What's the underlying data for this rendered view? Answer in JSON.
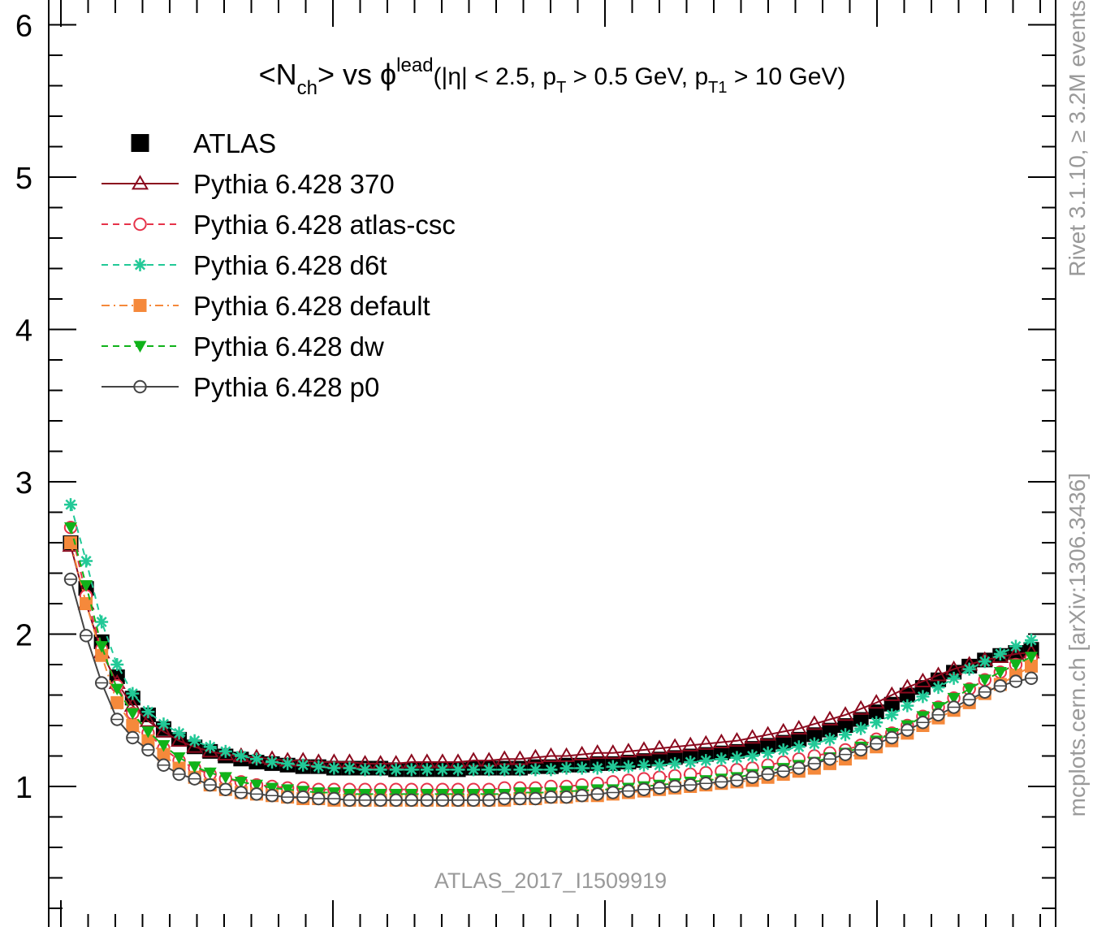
{
  "chart_data": {
    "type": "line",
    "title": {
      "main": "<N",
      "main_sub": "ch",
      "main_mid": "> vs ϕ",
      "main_sup": "lead",
      "cuts_a": "(|η| < 2.5, p",
      "cuts_sub_a": "T",
      "cuts_b": " > 0.5 GeV, p",
      "cuts_sub_b": "T1",
      "cuts_c": " > 10 GeV)"
    },
    "analysis_label": "ATLAS_2017_I1509919",
    "side_label_top": "Rivet 3.1.10, ≥ 3.2M events",
    "side_label_bottom": "mcplots.cern.ch [arXiv:1306.3436]",
    "y_ticks": [
      "1",
      "2",
      "3",
      "4",
      "5",
      "6"
    ],
    "ylim": [
      0.0,
      6.2
    ],
    "xlim": [
      0,
      60
    ],
    "grid": false,
    "legend_position": "top-left",
    "series": [
      {
        "name": "ATLAS",
        "color": "#000000",
        "marker": "filled-square",
        "line": "none",
        "values": [
          2.6,
          2.3,
          1.95,
          1.72,
          1.58,
          1.47,
          1.38,
          1.31,
          1.26,
          1.23,
          1.2,
          1.18,
          1.16,
          1.15,
          1.14,
          1.13,
          1.13,
          1.12,
          1.12,
          1.12,
          1.12,
          1.11,
          1.11,
          1.11,
          1.11,
          1.11,
          1.12,
          1.12,
          1.12,
          1.12,
          1.13,
          1.13,
          1.14,
          1.14,
          1.15,
          1.15,
          1.16,
          1.17,
          1.18,
          1.19,
          1.2,
          1.21,
          1.22,
          1.23,
          1.25,
          1.27,
          1.29,
          1.31,
          1.34,
          1.37,
          1.4,
          1.44,
          1.49,
          1.54,
          1.6,
          1.65,
          1.7,
          1.75,
          1.79,
          1.83,
          1.86,
          1.88,
          1.9
        ]
      },
      {
        "name": "Pythia 6.428 370",
        "color": "#8b0a1e",
        "marker": "open-triangle",
        "line": "solid",
        "values": [
          2.58,
          2.2,
          1.88,
          1.68,
          1.53,
          1.43,
          1.36,
          1.3,
          1.26,
          1.23,
          1.21,
          1.2,
          1.19,
          1.18,
          1.17,
          1.17,
          1.16,
          1.16,
          1.16,
          1.15,
          1.15,
          1.15,
          1.16,
          1.16,
          1.16,
          1.16,
          1.17,
          1.17,
          1.18,
          1.18,
          1.19,
          1.2,
          1.2,
          1.21,
          1.22,
          1.22,
          1.23,
          1.24,
          1.25,
          1.26,
          1.27,
          1.28,
          1.29,
          1.3,
          1.32,
          1.34,
          1.36,
          1.38,
          1.41,
          1.44,
          1.47,
          1.51,
          1.55,
          1.6,
          1.65,
          1.69,
          1.73,
          1.77,
          1.8,
          1.83,
          1.85,
          1.87,
          1.88
        ]
      },
      {
        "name": "Pythia 6.428 atlas-csc",
        "color": "#e6334a",
        "marker": "open-circle",
        "line": "dashed",
        "values": [
          2.7,
          2.25,
          1.9,
          1.66,
          1.48,
          1.35,
          1.25,
          1.17,
          1.12,
          1.08,
          1.05,
          1.03,
          1.01,
          1.0,
          0.99,
          0.99,
          0.98,
          0.98,
          0.98,
          0.98,
          0.98,
          0.98,
          0.98,
          0.98,
          0.98,
          0.98,
          0.98,
          0.98,
          0.99,
          0.99,
          0.99,
          1.0,
          1.0,
          1.01,
          1.02,
          1.03,
          1.04,
          1.05,
          1.06,
          1.07,
          1.08,
          1.09,
          1.1,
          1.11,
          1.12,
          1.14,
          1.16,
          1.18,
          1.2,
          1.22,
          1.24,
          1.27,
          1.31,
          1.35,
          1.4,
          1.46,
          1.52,
          1.58,
          1.64,
          1.7,
          1.75,
          1.8,
          1.84
        ]
      },
      {
        "name": "Pythia 6.428 d6t",
        "color": "#22c997",
        "marker": "asterisk",
        "line": "dashed",
        "values": [
          2.85,
          2.48,
          2.08,
          1.8,
          1.61,
          1.49,
          1.41,
          1.35,
          1.3,
          1.26,
          1.23,
          1.2,
          1.18,
          1.16,
          1.15,
          1.14,
          1.13,
          1.12,
          1.12,
          1.11,
          1.11,
          1.11,
          1.11,
          1.11,
          1.11,
          1.11,
          1.11,
          1.11,
          1.11,
          1.11,
          1.11,
          1.11,
          1.12,
          1.12,
          1.12,
          1.13,
          1.13,
          1.14,
          1.14,
          1.15,
          1.16,
          1.17,
          1.18,
          1.19,
          1.2,
          1.22,
          1.24,
          1.26,
          1.28,
          1.31,
          1.34,
          1.38,
          1.42,
          1.47,
          1.53,
          1.59,
          1.65,
          1.71,
          1.77,
          1.82,
          1.87,
          1.92,
          1.96
        ]
      },
      {
        "name": "Pythia 6.428 default",
        "color": "#f5893b",
        "marker": "filled-square",
        "line": "dashdot",
        "values": [
          2.6,
          2.2,
          1.86,
          1.55,
          1.4,
          1.3,
          1.21,
          1.12,
          1.06,
          1.01,
          0.98,
          0.96,
          0.95,
          0.94,
          0.93,
          0.92,
          0.92,
          0.91,
          0.91,
          0.91,
          0.91,
          0.91,
          0.91,
          0.91,
          0.91,
          0.91,
          0.91,
          0.91,
          0.91,
          0.92,
          0.92,
          0.93,
          0.93,
          0.94,
          0.94,
          0.95,
          0.96,
          0.97,
          0.98,
          0.99,
          1.0,
          1.01,
          1.02,
          1.03,
          1.04,
          1.06,
          1.08,
          1.1,
          1.12,
          1.15,
          1.18,
          1.22,
          1.26,
          1.3,
          1.35,
          1.4,
          1.45,
          1.5,
          1.55,
          1.61,
          1.67,
          1.73,
          1.79
        ]
      },
      {
        "name": "Pythia 6.428 dw",
        "color": "#10b21a",
        "marker": "filled-triangle-down",
        "line": "dashed",
        "values": [
          2.7,
          2.32,
          1.92,
          1.64,
          1.48,
          1.36,
          1.27,
          1.19,
          1.13,
          1.09,
          1.06,
          1.03,
          1.01,
          0.99,
          0.98,
          0.97,
          0.96,
          0.96,
          0.95,
          0.95,
          0.95,
          0.95,
          0.95,
          0.95,
          0.95,
          0.95,
          0.95,
          0.95,
          0.95,
          0.96,
          0.96,
          0.96,
          0.97,
          0.97,
          0.98,
          0.98,
          0.99,
          1.0,
          1.01,
          1.02,
          1.03,
          1.04,
          1.05,
          1.06,
          1.08,
          1.1,
          1.12,
          1.14,
          1.16,
          1.19,
          1.22,
          1.26,
          1.3,
          1.35,
          1.4,
          1.46,
          1.52,
          1.58,
          1.64,
          1.7,
          1.75,
          1.8,
          1.85
        ]
      },
      {
        "name": "Pythia 6.428 p0",
        "color": "#444444",
        "marker": "open-circle-cross",
        "line": "solid",
        "values": [
          2.36,
          1.99,
          1.68,
          1.44,
          1.32,
          1.24,
          1.14,
          1.08,
          1.05,
          1.01,
          0.98,
          0.96,
          0.95,
          0.94,
          0.93,
          0.93,
          0.92,
          0.92,
          0.91,
          0.91,
          0.91,
          0.91,
          0.91,
          0.91,
          0.91,
          0.91,
          0.91,
          0.91,
          0.92,
          0.92,
          0.92,
          0.93,
          0.93,
          0.94,
          0.95,
          0.96,
          0.97,
          0.98,
          0.99,
          1.0,
          1.01,
          1.02,
          1.03,
          1.04,
          1.06,
          1.08,
          1.1,
          1.12,
          1.15,
          1.18,
          1.21,
          1.24,
          1.28,
          1.32,
          1.37,
          1.42,
          1.47,
          1.52,
          1.57,
          1.62,
          1.66,
          1.69,
          1.71
        ]
      }
    ]
  }
}
